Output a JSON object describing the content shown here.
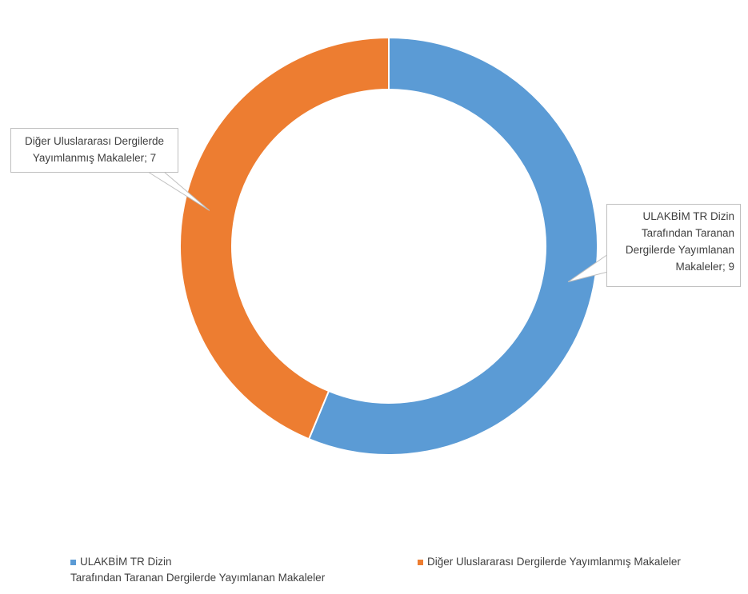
{
  "chart_data": {
    "type": "pie",
    "variant": "doughnut",
    "categories": [
      "ULAKBİM   TR   Dizin Tarafından Taranan Dergilerde Yayımlanan Makaleler",
      "Diğer Uluslararası Dergilerde Yayımlanmış Makaleler"
    ],
    "values": [
      9,
      7
    ],
    "colors": [
      "#5b9bd5",
      "#ed7d31"
    ],
    "data_labels": [
      "ULAKBİM   TR   Dizin Tarafından Taranan Dergilerde Yayımlanan Makaleler; 9",
      "Diğer Uluslararası Dergilerde Yayımlanmış Makaleler; 7"
    ],
    "legend_position": "bottom",
    "legend": [
      {
        "line1": "ULAKBİM   TR   Dizin",
        "line2": "Tarafından Taranan Dergilerde Yayımlanan Makaleler"
      },
      {
        "line1": "Diğer Uluslararası Dergilerde Yayımlanmış Makaleler"
      }
    ],
    "callouts": [
      {
        "lines": [
          "ULAKBİM   TR   Dizin",
          "Tarafından Taranan",
          "Dergilerde Yayımlanan",
          "Makaleler; 9"
        ]
      },
      {
        "lines": [
          "Diğer Uluslararası Dergilerde",
          "Yayımlanmış Makaleler; 7"
        ]
      }
    ]
  }
}
